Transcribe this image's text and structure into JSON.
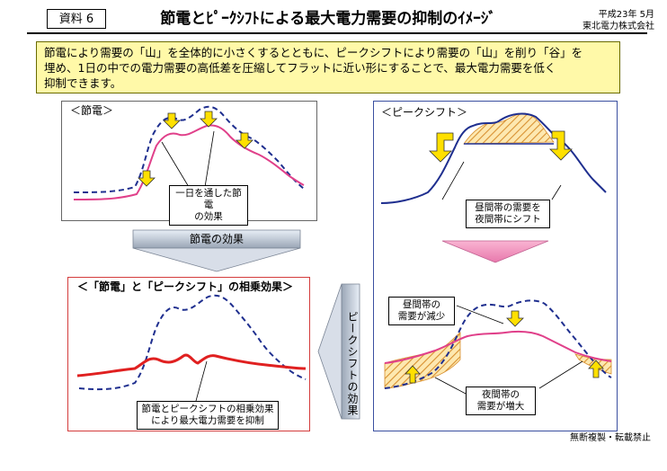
{
  "header": {
    "doc_tag": "資料 6",
    "title": "節電とﾋﾟｰｸｼﾌﾄによる最大電力需要の抑制のｲﾒｰｼﾞ",
    "date": "平成23年 5月",
    "company": "東北電力株式会社"
  },
  "intro": {
    "line1": "節電により需要の「山」を全体的に小さくするとともに、ピークシフトにより需要の「山」を削り「谷」を",
    "line2": "埋め、1日の中での電力需要の高低差を圧縮してフラットに近い形にすることで、最大電力需要を低く",
    "line3": "抑制できます。"
  },
  "panels": {
    "setsuden": {
      "title": "＜節電＞",
      "callout_1": "一日を通した節電",
      "callout_2": "の効果"
    },
    "peak_shift": {
      "title": "＜ピークシフト＞",
      "callout_top_1": "昼間帯の需要を",
      "callout_top_2": "夜間帯にシフト",
      "callout_mid_1": "昼間帯の",
      "callout_mid_2": "需要が減少",
      "callout_bot_1": "夜間帯の",
      "callout_bot_2": "需要が増大"
    },
    "combined": {
      "title": "＜「節電」と「ピークシフト」の相乗効果＞",
      "callout_1": "節電とピークシフトの相乗効果",
      "callout_2": "により最大電力需要を抑制"
    }
  },
  "arrows": {
    "setsuden_effect": "節電の効果",
    "peak_shift_effect": "ピークシフトの効果"
  },
  "footer": {
    "note": "無断複製・転載禁止"
  },
  "colors": {
    "original_demand": "#1f2f8f",
    "reduced_demand_pink": "#e0408a",
    "combined_demand_red": "#e02020",
    "highlight_yellow": "#ffe000",
    "hatch_orange": "#e0a040",
    "panel_blue": "#3a4fa0",
    "panel_red": "#d43c3c",
    "intro_bg": "#fff9a8"
  }
}
